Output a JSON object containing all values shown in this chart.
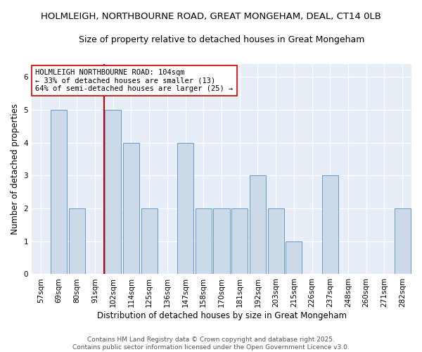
{
  "title1": "HOLMLEIGH, NORTHBOURNE ROAD, GREAT MONGEHAM, DEAL, CT14 0LB",
  "title2": "Size of property relative to detached houses in Great Mongeham",
  "xlabel": "Distribution of detached houses by size in Great Mongeham",
  "ylabel": "Number of detached properties",
  "categories": [
    "57sqm",
    "69sqm",
    "80sqm",
    "91sqm",
    "102sqm",
    "114sqm",
    "125sqm",
    "136sqm",
    "147sqm",
    "158sqm",
    "170sqm",
    "181sqm",
    "192sqm",
    "203sqm",
    "215sqm",
    "226sqm",
    "237sqm",
    "248sqm",
    "260sqm",
    "271sqm",
    "282sqm"
  ],
  "values": [
    0,
    5,
    2,
    0,
    5,
    4,
    2,
    0,
    4,
    2,
    2,
    2,
    3,
    2,
    1,
    0,
    3,
    0,
    0,
    0,
    2
  ],
  "bar_color": "#ccd9e8",
  "bar_edge_color": "#6699cc",
  "highlight_index": 4,
  "highlight_color": "#cc0000",
  "annotation_text": "HOLMLEIGH NORTHBOURNE ROAD: 104sqm\n← 33% of detached houses are smaller (13)\n64% of semi-detached houses are larger (25) →",
  "annotation_box_color": "#ffffff",
  "annotation_box_edge": "#cc0000",
  "ylim": [
    0,
    6.4
  ],
  "yticks": [
    0,
    1,
    2,
    3,
    4,
    5,
    6
  ],
  "footer": "Contains HM Land Registry data © Crown copyright and database right 2025.\nContains public sector information licensed under the Open Government Licence v3.0.",
  "background_color": "#e8eef8",
  "fig_bg_color": "#ffffff",
  "title1_fontsize": 9.5,
  "title2_fontsize": 9,
  "axis_label_fontsize": 8.5,
  "tick_fontsize": 7.5,
  "annotation_fontsize": 7.5,
  "footer_fontsize": 6.5
}
